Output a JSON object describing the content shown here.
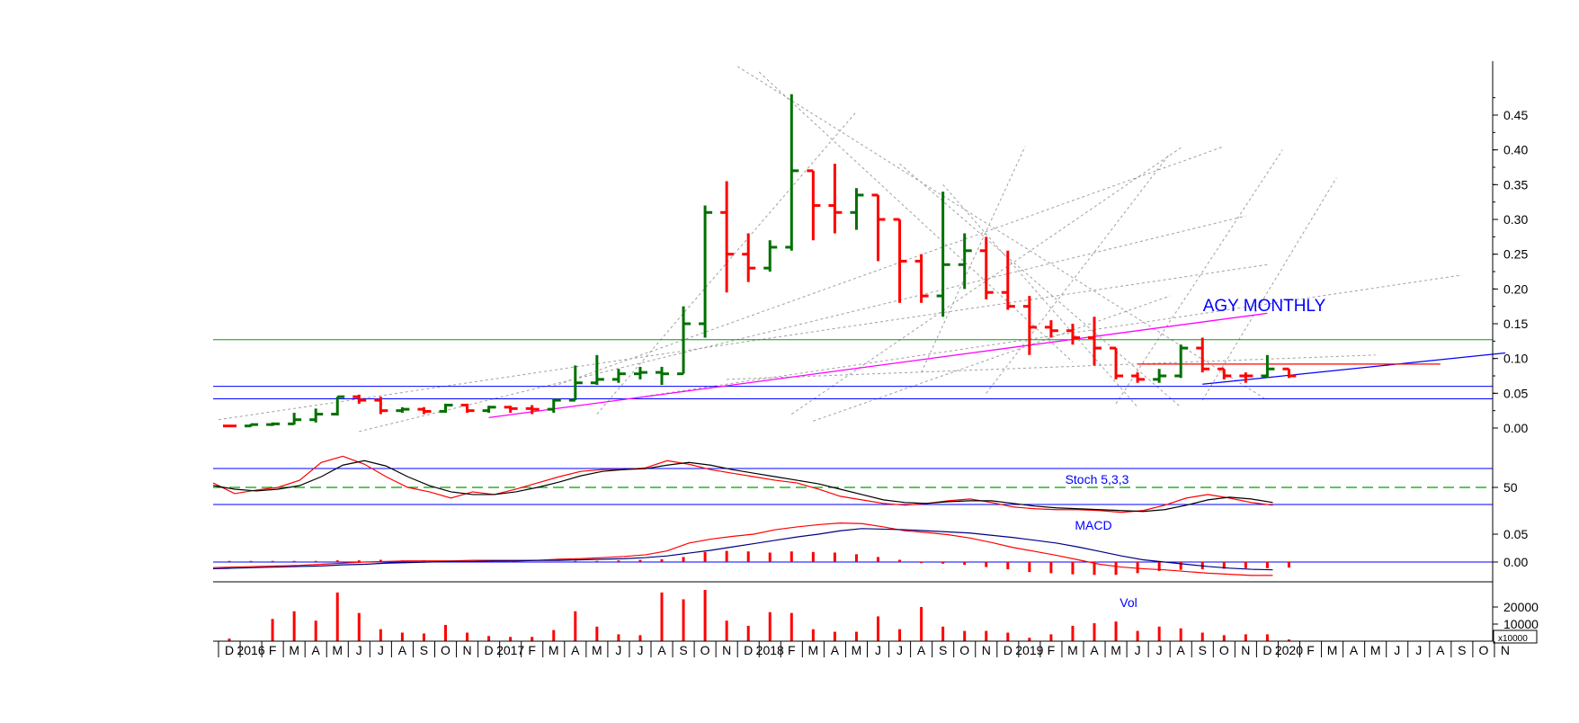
{
  "chart_data": {
    "type": "ohlc",
    "title": "AGY MONTHLY",
    "colors": {
      "up": "#007000",
      "down": "#ff0000",
      "blue": "#0000ff",
      "magenta": "#ff00ff",
      "green_line": "#00a000",
      "grid_dash": "#a0a0a0",
      "axis": "#000000",
      "label_blue": "#0000ff"
    },
    "x_axis": {
      "labels": [
        "D",
        "2016",
        "F",
        "M",
        "A",
        "M",
        "J",
        "J",
        "A",
        "S",
        "O",
        "N",
        "D",
        "2017",
        "F",
        "M",
        "A",
        "M",
        "J",
        "J",
        "A",
        "S",
        "O",
        "N",
        "D",
        "2018",
        "F",
        "M",
        "A",
        "M",
        "J",
        "J",
        "A",
        "S",
        "O",
        "N",
        "D",
        "2019",
        "F",
        "M",
        "A",
        "M",
        "J",
        "J",
        "A",
        "S",
        "O",
        "N",
        "D",
        "2020",
        "F",
        "M",
        "A",
        "M",
        "J",
        "J",
        "A",
        "S",
        "O",
        "N"
      ]
    },
    "price_panel": {
      "yticks": [
        "0.45",
        "0.40",
        "0.35",
        "0.30",
        "0.25",
        "0.20",
        "0.15",
        "0.10",
        "0.05",
        "0.00"
      ],
      "ylim": [
        -0.01,
        0.52
      ],
      "bars": [
        {
          "o": 0.003,
          "h": 0.004,
          "l": 0.002,
          "c": 0.003,
          "up": false
        },
        {
          "o": 0.003,
          "h": 0.006,
          "l": 0.002,
          "c": 0.005,
          "up": true
        },
        {
          "o": 0.005,
          "h": 0.008,
          "l": 0.003,
          "c": 0.006,
          "up": true
        },
        {
          "o": 0.006,
          "h": 0.022,
          "l": 0.005,
          "c": 0.012,
          "up": true
        },
        {
          "o": 0.012,
          "h": 0.028,
          "l": 0.008,
          "c": 0.02,
          "up": true
        },
        {
          "o": 0.02,
          "h": 0.045,
          "l": 0.018,
          "c": 0.045,
          "up": true
        },
        {
          "o": 0.045,
          "h": 0.048,
          "l": 0.035,
          "c": 0.04,
          "up": false
        },
        {
          "o": 0.04,
          "h": 0.045,
          "l": 0.02,
          "c": 0.025,
          "up": false
        },
        {
          "o": 0.025,
          "h": 0.03,
          "l": 0.022,
          "c": 0.027,
          "up": true
        },
        {
          "o": 0.027,
          "h": 0.03,
          "l": 0.02,
          "c": 0.024,
          "up": false
        },
        {
          "o": 0.024,
          "h": 0.035,
          "l": 0.022,
          "c": 0.033,
          "up": true
        },
        {
          "o": 0.033,
          "h": 0.035,
          "l": 0.022,
          "c": 0.025,
          "up": false
        },
        {
          "o": 0.025,
          "h": 0.032,
          "l": 0.022,
          "c": 0.03,
          "up": true
        },
        {
          "o": 0.03,
          "h": 0.032,
          "l": 0.022,
          "c": 0.028,
          "up": false
        },
        {
          "o": 0.028,
          "h": 0.033,
          "l": 0.02,
          "c": 0.027,
          "up": false
        },
        {
          "o": 0.027,
          "h": 0.042,
          "l": 0.022,
          "c": 0.04,
          "up": true
        },
        {
          "o": 0.04,
          "h": 0.09,
          "l": 0.04,
          "c": 0.065,
          "up": true
        },
        {
          "o": 0.065,
          "h": 0.105,
          "l": 0.062,
          "c": 0.07,
          "up": true
        },
        {
          "o": 0.07,
          "h": 0.085,
          "l": 0.065,
          "c": 0.078,
          "up": true
        },
        {
          "o": 0.078,
          "h": 0.088,
          "l": 0.07,
          "c": 0.08,
          "up": true
        },
        {
          "o": 0.08,
          "h": 0.088,
          "l": 0.062,
          "c": 0.078,
          "up": true
        },
        {
          "o": 0.078,
          "h": 0.175,
          "l": 0.078,
          "c": 0.15,
          "up": true
        },
        {
          "o": 0.15,
          "h": 0.32,
          "l": 0.13,
          "c": 0.31,
          "up": true
        },
        {
          "o": 0.31,
          "h": 0.355,
          "l": 0.195,
          "c": 0.25,
          "up": false
        },
        {
          "o": 0.25,
          "h": 0.28,
          "l": 0.21,
          "c": 0.23,
          "up": false
        },
        {
          "o": 0.23,
          "h": 0.27,
          "l": 0.225,
          "c": 0.26,
          "up": true
        },
        {
          "o": 0.26,
          "h": 0.48,
          "l": 0.255,
          "c": 0.37,
          "up": true
        },
        {
          "o": 0.37,
          "h": 0.37,
          "l": 0.27,
          "c": 0.32,
          "up": false
        },
        {
          "o": 0.32,
          "h": 0.38,
          "l": 0.28,
          "c": 0.31,
          "up": false
        },
        {
          "o": 0.31,
          "h": 0.345,
          "l": 0.285,
          "c": 0.335,
          "up": true
        },
        {
          "o": 0.335,
          "h": 0.335,
          "l": 0.24,
          "c": 0.3,
          "up": false
        },
        {
          "o": 0.3,
          "h": 0.3,
          "l": 0.18,
          "c": 0.24,
          "up": false
        },
        {
          "o": 0.24,
          "h": 0.25,
          "l": 0.18,
          "c": 0.19,
          "up": false
        },
        {
          "o": 0.19,
          "h": 0.34,
          "l": 0.16,
          "c": 0.235,
          "up": true
        },
        {
          "o": 0.235,
          "h": 0.28,
          "l": 0.2,
          "c": 0.255,
          "up": true
        },
        {
          "o": 0.255,
          "h": 0.275,
          "l": 0.185,
          "c": 0.195,
          "up": false
        },
        {
          "o": 0.195,
          "h": 0.255,
          "l": 0.17,
          "c": 0.175,
          "up": false
        },
        {
          "o": 0.175,
          "h": 0.19,
          "l": 0.105,
          "c": 0.145,
          "up": false
        },
        {
          "o": 0.145,
          "h": 0.155,
          "l": 0.13,
          "c": 0.14,
          "up": false
        },
        {
          "o": 0.14,
          "h": 0.15,
          "l": 0.12,
          "c": 0.13,
          "up": false
        },
        {
          "o": 0.13,
          "h": 0.16,
          "l": 0.09,
          "c": 0.115,
          "up": false
        },
        {
          "o": 0.115,
          "h": 0.115,
          "l": 0.07,
          "c": 0.075,
          "up": false
        },
        {
          "o": 0.075,
          "h": 0.08,
          "l": 0.065,
          "c": 0.07,
          "up": false
        },
        {
          "o": 0.07,
          "h": 0.085,
          "l": 0.065,
          "c": 0.075,
          "up": true
        },
        {
          "o": 0.075,
          "h": 0.12,
          "l": 0.072,
          "c": 0.115,
          "up": true
        },
        {
          "o": 0.115,
          "h": 0.13,
          "l": 0.08,
          "c": 0.085,
          "up": false
        },
        {
          "o": 0.085,
          "h": 0.085,
          "l": 0.07,
          "c": 0.075,
          "up": false
        },
        {
          "o": 0.075,
          "h": 0.08,
          "l": 0.065,
          "c": 0.075,
          "up": false
        },
        {
          "o": 0.075,
          "h": 0.105,
          "l": 0.072,
          "c": 0.085,
          "up": true
        },
        {
          "o": 0.085,
          "h": 0.085,
          "l": 0.072,
          "c": 0.075,
          "up": false
        }
      ],
      "horizontal_lines": [
        {
          "y": 0.127,
          "color": "green"
        },
        {
          "y": 0.06,
          "color": "blue"
        },
        {
          "y": 0.042,
          "color": "blue"
        }
      ],
      "trendlines": [
        {
          "from": [
            12,
            0.015
          ],
          "to": [
            48,
            0.165
          ],
          "color": "magenta"
        },
        {
          "from": [
            45,
            0.063
          ],
          "to": [
            59,
            0.108
          ],
          "color": "blue"
        },
        {
          "from": [
            42,
            0.092
          ],
          "to": [
            56,
            0.092
          ],
          "color": "red"
        }
      ],
      "fan_lines": [
        {
          "from": [
            -0.5,
            0.012
          ],
          "to": [
            48,
            0.235
          ]
        },
        {
          "from": [
            6,
            -0.005
          ],
          "to": [
            47,
            0.305
          ]
        },
        {
          "from": [
            15,
            0.06
          ],
          "to": [
            46,
            0.405
          ]
        },
        {
          "from": [
            18,
            0.04
          ],
          "to": [
            57,
            0.22
          ]
        },
        {
          "from": [
            23,
            0.07
          ],
          "to": [
            53,
            0.105
          ]
        },
        {
          "from": [
            17,
            0.02
          ],
          "to": [
            29,
            0.455
          ]
        },
        {
          "from": [
            26,
            0.02
          ],
          "to": [
            44,
            0.403
          ]
        },
        {
          "from": [
            32,
            0.08
          ],
          "to": [
            36.8,
            0.405
          ]
        },
        {
          "from": [
            35,
            0.05
          ],
          "to": [
            43.5,
            0.395
          ]
        },
        {
          "from": [
            41,
            0.035
          ],
          "to": [
            48.7,
            0.4
          ]
        },
        {
          "from": [
            45,
            0.04
          ],
          "to": [
            51.2,
            0.36
          ]
        },
        {
          "from": [
            23.5,
            0.52
          ],
          "to": [
            48,
            0.04
          ]
        },
        {
          "from": [
            24.5,
            0.512
          ],
          "to": [
            39,
            0.095
          ]
        },
        {
          "from": [
            31,
            0.38
          ],
          "to": [
            44,
            0.03
          ]
        },
        {
          "from": [
            33,
            0.35
          ],
          "to": [
            42,
            0.03
          ]
        },
        {
          "from": [
            27,
            0.01
          ],
          "to": [
            43.5,
            0.19
          ]
        }
      ]
    },
    "stoch_panel": {
      "label": "Stoch 5,3,3",
      "ytick": "50",
      "k": [
        55,
        43,
        47,
        50,
        58,
        78,
        85,
        76,
        62,
        50,
        45,
        38,
        45,
        42,
        48,
        55,
        62,
        68,
        70,
        70,
        72,
        80,
        76,
        70,
        66,
        62,
        58,
        55,
        48,
        40,
        36,
        32,
        30,
        32,
        35,
        37,
        33,
        28,
        26,
        25,
        25,
        24,
        22,
        24,
        30,
        38,
        42,
        38,
        33,
        30
      ],
      "d": [
        52,
        48,
        46,
        48,
        52,
        62,
        75,
        80,
        74,
        62,
        52,
        45,
        42,
        42,
        45,
        50,
        56,
        63,
        68,
        70,
        71,
        75,
        78,
        75,
        70,
        66,
        62,
        58,
        54,
        48,
        42,
        36,
        33,
        32,
        34,
        35,
        35,
        32,
        29,
        27,
        26,
        25,
        24,
        23,
        25,
        30,
        36,
        39,
        37,
        33
      ]
    },
    "macd_panel": {
      "label": "MACD",
      "yticks": [
        "0.05",
        "0.00"
      ],
      "macd": [
        -0.01,
        -0.009,
        -0.008,
        -0.007,
        -0.006,
        -0.004,
        -0.002,
        0.0,
        0.001,
        0.002,
        0.002,
        0.002,
        0.003,
        0.003,
        0.003,
        0.003,
        0.005,
        0.006,
        0.008,
        0.01,
        0.013,
        0.02,
        0.034,
        0.041,
        0.046,
        0.05,
        0.058,
        0.063,
        0.067,
        0.07,
        0.069,
        0.063,
        0.056,
        0.053,
        0.049,
        0.043,
        0.035,
        0.026,
        0.019,
        0.012,
        0.004,
        -0.004,
        -0.009,
        -0.012,
        -0.014,
        -0.017,
        -0.02,
        -0.022,
        -0.024,
        -0.024
      ],
      "signal": [
        -0.012,
        -0.011,
        -0.01,
        -0.009,
        -0.008,
        -0.007,
        -0.005,
        -0.004,
        -0.002,
        -0.001,
        0.0,
        0.001,
        0.001,
        0.002,
        0.002,
        0.003,
        0.003,
        0.004,
        0.005,
        0.006,
        0.008,
        0.011,
        0.016,
        0.021,
        0.027,
        0.033,
        0.039,
        0.045,
        0.05,
        0.056,
        0.06,
        0.059,
        0.058,
        0.056,
        0.054,
        0.052,
        0.048,
        0.044,
        0.039,
        0.034,
        0.027,
        0.019,
        0.011,
        0.004,
        0.0,
        -0.004,
        -0.008,
        -0.011,
        -0.013,
        -0.014
      ],
      "histogram": [
        0.002,
        0.002,
        0.002,
        0.002,
        0.002,
        0.003,
        0.003,
        0.004,
        0.003,
        0.003,
        0.002,
        0.001,
        0.002,
        0.001,
        0.001,
        0.0,
        0.002,
        0.002,
        0.003,
        0.004,
        0.005,
        0.009,
        0.018,
        0.02,
        0.019,
        0.017,
        0.019,
        0.018,
        0.017,
        0.014,
        0.009,
        0.004,
        -0.002,
        -0.003,
        -0.005,
        -0.009,
        -0.013,
        -0.018,
        -0.02,
        -0.022,
        -0.023,
        -0.023,
        -0.02,
        -0.016,
        -0.014,
        -0.013,
        -0.012,
        -0.011,
        -0.011,
        -0.01
      ],
      "ylim": [
        -0.035,
        0.085
      ]
    },
    "volume_panel": {
      "label": "Vol",
      "yticks": [
        "20000",
        "10000"
      ],
      "unit": "x10000",
      "values": [
        1500,
        0,
        13000,
        17500,
        12000,
        28500,
        16500,
        7000,
        5000,
        4500,
        9500,
        5000,
        3000,
        2500,
        2500,
        6500,
        17500,
        8500,
        4000,
        3500,
        28500,
        24500,
        30000,
        12000,
        9000,
        17000,
        16500,
        7000,
        5500,
        5500,
        14500,
        7000,
        20000,
        8500,
        6000,
        6000,
        5000,
        2000,
        4000,
        9000,
        10500,
        11500,
        6000,
        8500,
        7500,
        5000,
        3500,
        4000,
        4000,
        1000
      ],
      "ylim": [
        0,
        32000
      ]
    }
  }
}
